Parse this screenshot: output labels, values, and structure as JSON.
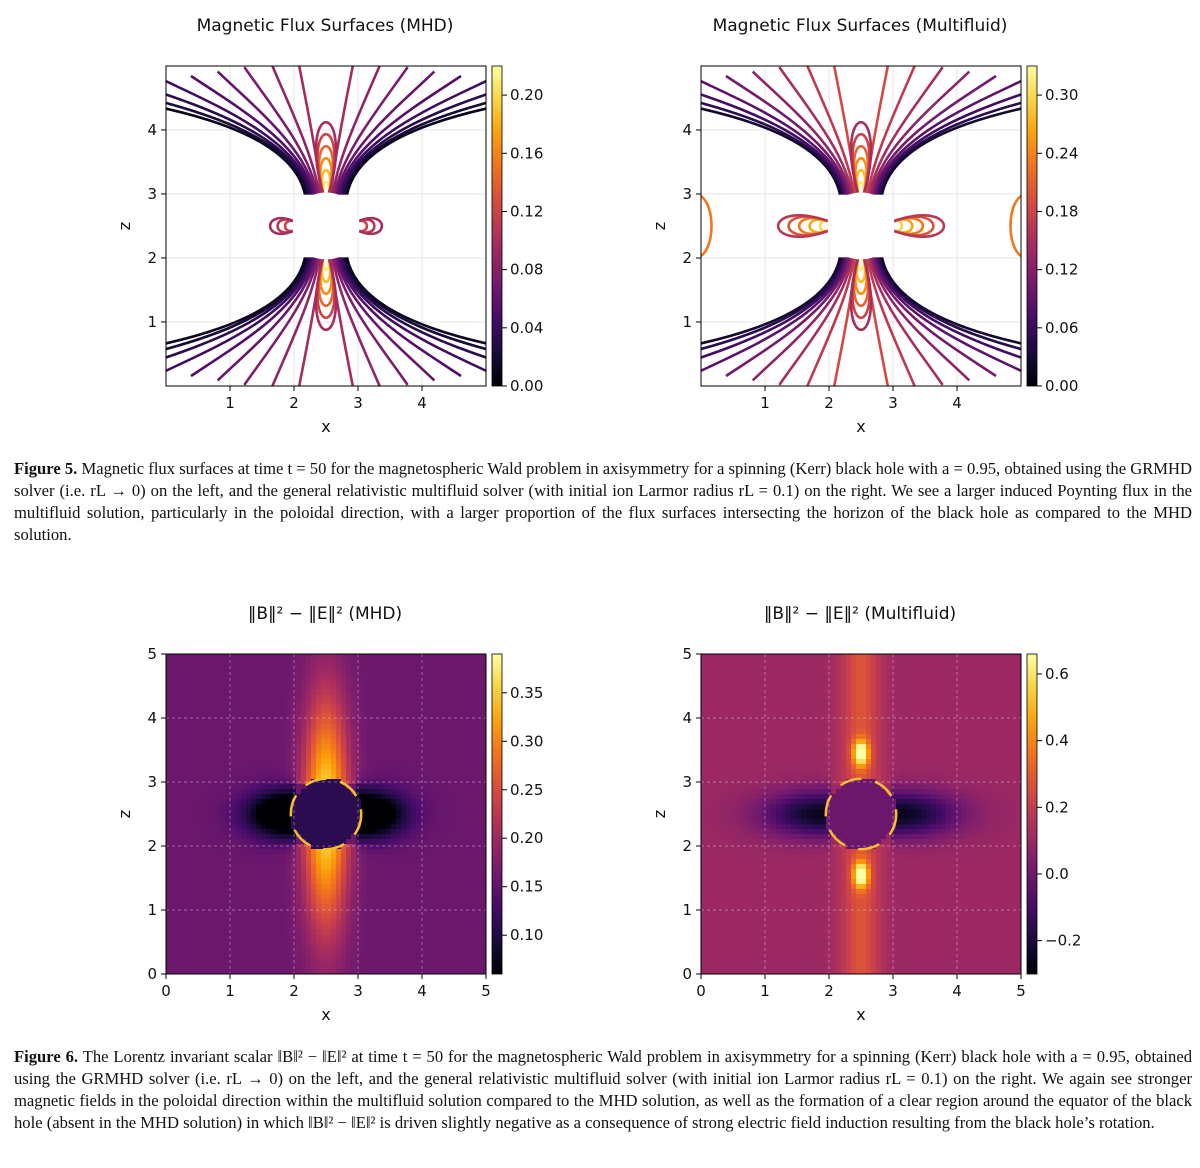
{
  "figure5": {
    "panels": [
      {
        "title": "Magnetic Flux Surfaces (MHD)",
        "xlabel": "x",
        "ylabel": "z",
        "xticks": [
          "1",
          "2",
          "3",
          "4"
        ],
        "yticks": [
          "1",
          "2",
          "3",
          "4"
        ],
        "colorbar_ticks": [
          "0.20",
          "0.16",
          "0.12",
          "0.08",
          "0.04",
          "0.00"
        ],
        "colorbar_range": [
          0.0,
          0.22
        ]
      },
      {
        "title": "Magnetic Flux Surfaces (Multifluid)",
        "xlabel": "x",
        "ylabel": "z",
        "xticks": [
          "1",
          "2",
          "3",
          "4"
        ],
        "yticks": [
          "1",
          "2",
          "3",
          "4"
        ],
        "colorbar_ticks": [
          "0.30",
          "0.24",
          "0.18",
          "0.12",
          "0.06",
          "0.00"
        ],
        "colorbar_range": [
          0.0,
          0.33
        ]
      }
    ],
    "caption_label": "Figure 5.",
    "caption_text": " Magnetic flux surfaces at time t = 50 for the magnetospheric Wald problem in axisymmetry for a spinning (Kerr) black hole with a = 0.95, obtained using the GRMHD solver (i.e. rL → 0) on the left, and the general relativistic multifluid solver (with initial ion Larmor radius rL = 0.1) on the right. We see a larger induced Poynting flux in the multifluid solution, particularly in the poloidal direction, with a larger proportion of the flux surfaces intersecting the horizon of the black hole as compared to the MHD solution."
  },
  "figure6": {
    "panels": [
      {
        "title": "‖B‖² − ‖E‖² (MHD)",
        "xlabel": "x",
        "ylabel": "z",
        "xticks": [
          "0",
          "1",
          "2",
          "3",
          "4",
          "5"
        ],
        "yticks": [
          "0",
          "1",
          "2",
          "3",
          "4",
          "5"
        ],
        "colorbar_ticks": [
          "0.35",
          "0.30",
          "0.25",
          "0.20",
          "0.15",
          "0.10"
        ]
      },
      {
        "title": "‖B‖² − ‖E‖² (Multifluid)",
        "xlabel": "x",
        "ylabel": "z",
        "xticks": [
          "0",
          "1",
          "2",
          "3",
          "4",
          "5"
        ],
        "yticks": [
          "0",
          "1",
          "2",
          "3",
          "4",
          "5"
        ],
        "colorbar_ticks": [
          "0.6",
          "0.4",
          "0.2",
          "0.0",
          "−0.2"
        ]
      }
    ],
    "caption_label": "Figure 6.",
    "caption_text": " The Lorentz invariant scalar ‖B‖² − ‖E‖² at time t = 50 for the magnetospheric Wald problem in axisymmetry for a spinning (Kerr) black hole with a = 0.95, obtained using the GRMHD solver (i.e. rL → 0) on the left, and the general relativistic multifluid solver (with initial ion Larmor radius rL = 0.1) on the right. We again see stronger magnetic fields in the poloidal direction within the multifluid solution compared to the MHD solution, as well as the formation of a clear region around the equator of the black hole (absent in the MHD solution) in which ‖B‖² − ‖E‖² is driven slightly negative as a consequence of strong electric field induction resulting from the black hole’s rotation."
  },
  "colors": {
    "inferno_dark": "#0d0829",
    "inferno_purple": "#57106e",
    "inferno_red": "#bc3754",
    "inferno_orange": "#f98e09",
    "inferno_yellow": "#fcffa4"
  }
}
